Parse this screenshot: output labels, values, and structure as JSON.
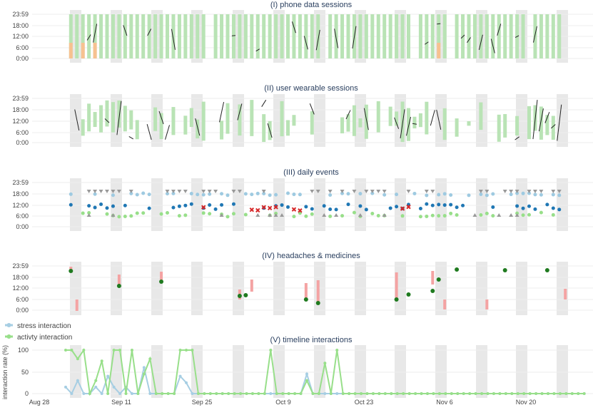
{
  "chart_data": [
    {
      "type": "bar",
      "title": "(I) phone data sessions",
      "ytick_labels": [
        "23:59",
        "18:00",
        "12:00",
        "6:00",
        "0:00"
      ],
      "colors": {
        "session": "#b9e3b5",
        "partial": "#f7c190"
      }
    },
    {
      "type": "bar",
      "title": "(II) user wearable sessions",
      "ytick_labels": [
        "23:59",
        "18:00",
        "12:00",
        "6:00",
        "0:00"
      ],
      "colors": {
        "session": "#b9e3b5",
        "partial": "#f7c190"
      }
    },
    {
      "type": "scatter",
      "title": "(III) daily events",
      "ytick_labels": [
        "23:59",
        "18:00",
        "12:00",
        "6:00",
        "0:00"
      ],
      "colors": {
        "light": "#9ecae1",
        "dark": "#1f77b4",
        "green": "#98df8a",
        "marker": "#d62728"
      }
    },
    {
      "type": "bar",
      "title": "(IV) headaches & medicines",
      "ytick_labels": [
        "23:59",
        "18:00",
        "12:00",
        "6:00",
        "0:00"
      ],
      "colors": {
        "headache": "#f4a3a3",
        "medicine": "#2ca02c"
      }
    },
    {
      "type": "line",
      "title": "(V) timeline interactions",
      "ylabel": "interaction rate (%)",
      "ylim": [
        0,
        100
      ],
      "ytick_labels": [
        "100",
        "50",
        "0"
      ],
      "xtick_labels": [
        "Aug 28",
        "Sep 11",
        "Sep 25",
        "Oct 9",
        "Oct 23",
        "Nov 6",
        "Nov 20"
      ],
      "series": [
        {
          "name": "stress interaction",
          "color": "#a6cee3",
          "values": [
            15,
            0,
            30,
            0,
            0,
            15,
            0,
            40,
            15,
            0,
            15,
            0,
            0,
            60,
            0,
            0,
            0,
            0,
            0,
            40,
            25,
            0,
            0,
            0,
            0,
            0,
            0,
            0,
            0,
            0,
            0,
            0,
            0,
            0,
            0,
            0,
            0,
            0,
            0,
            0,
            45,
            0,
            0,
            0,
            0,
            0,
            0,
            0,
            0,
            0,
            0,
            0,
            0,
            0,
            0,
            0,
            0,
            0,
            0,
            0,
            0,
            0,
            0,
            0,
            0,
            0,
            0,
            0,
            0,
            0,
            0,
            0,
            0,
            0,
            0,
            0,
            0,
            0,
            0,
            0,
            0,
            0,
            0,
            0,
            0,
            0,
            0
          ]
        },
        {
          "name": "activty interaction",
          "color": "#98df8a",
          "values": [
            100,
            100,
            80,
            100,
            0,
            30,
            75,
            0,
            100,
            100,
            0,
            100,
            0,
            45,
            80,
            0,
            0,
            0,
            0,
            100,
            100,
            100,
            0,
            0,
            0,
            0,
            0,
            0,
            0,
            0,
            0,
            0,
            0,
            0,
            100,
            0,
            0,
            0,
            0,
            0,
            30,
            0,
            0,
            70,
            0,
            100,
            0,
            0,
            0,
            0,
            0,
            0,
            0,
            0,
            0,
            0,
            0,
            0,
            0,
            0,
            0,
            0,
            0,
            0,
            0,
            0,
            0,
            0,
            0,
            0,
            0,
            0,
            0,
            0,
            0,
            0,
            0,
            0,
            0,
            0,
            0,
            0,
            0,
            0,
            0,
            0,
            0
          ]
        }
      ]
    }
  ]
}
